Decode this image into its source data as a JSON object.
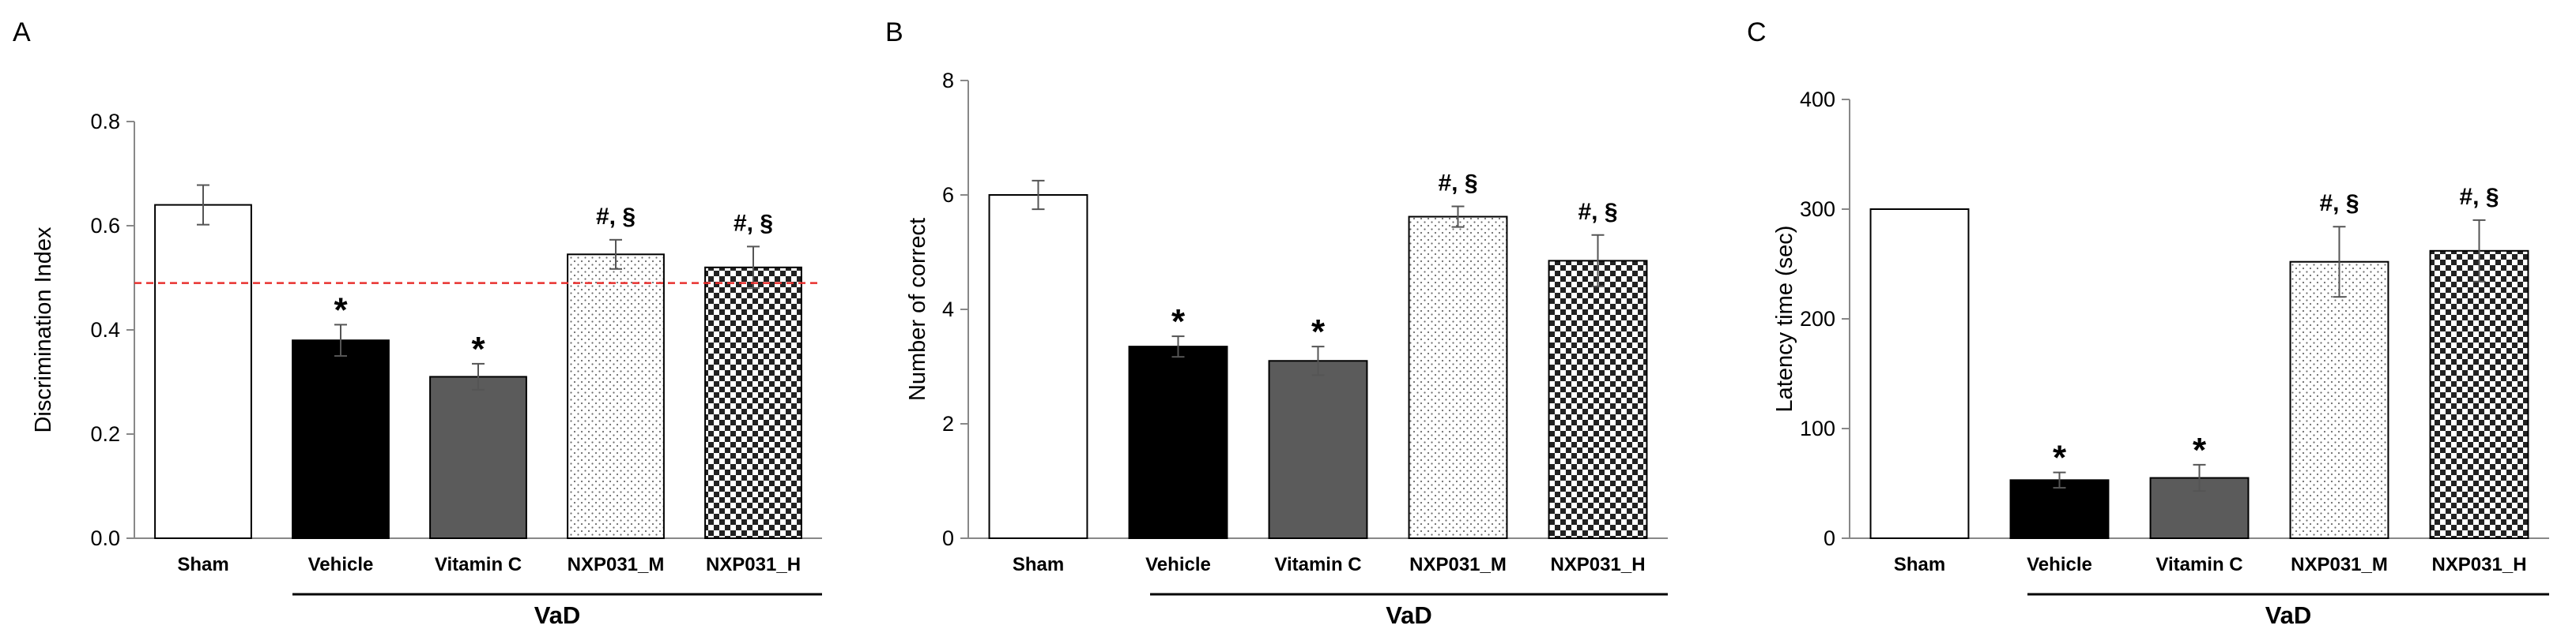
{
  "chart_data": [
    {
      "type": "bar",
      "panel": "A",
      "ylabel": "Discrimination Index",
      "ylim": [
        0,
        0.8
      ],
      "yticks": [
        "0.0",
        "0.2",
        "0.4",
        "0.6",
        "0.8"
      ],
      "categories": [
        "Sham",
        "Vehicle",
        "Vitamin C",
        "NXP031_M",
        "NXP031_H"
      ],
      "values": [
        0.64,
        0.38,
        0.31,
        0.545,
        0.52
      ],
      "errors": [
        0.038,
        0.03,
        0.025,
        0.028,
        0.04
      ],
      "annotations": [
        "",
        "*",
        "*",
        "#, §",
        "#, §"
      ],
      "reference_line": 0.49,
      "group_label": "VaD",
      "grid": false
    },
    {
      "type": "bar",
      "panel": "B",
      "ylabel": "Number  of correct",
      "ylim": [
        0,
        8
      ],
      "yticks": [
        "0",
        "2",
        "4",
        "6",
        "8"
      ],
      "categories": [
        "Sham",
        "Vehicle",
        "Vitamin C",
        "NXP031_M",
        "NXP031_H"
      ],
      "values": [
        6.0,
        3.35,
        3.1,
        5.62,
        4.85
      ],
      "errors": [
        0.25,
        0.18,
        0.25,
        0.18,
        0.45
      ],
      "annotations": [
        "",
        "*",
        "*",
        "#, §",
        "#, §"
      ],
      "group_label": "VaD",
      "grid": false
    },
    {
      "type": "bar",
      "panel": "C",
      "ylabel": "Latency time (sec)",
      "ylim": [
        0,
        400
      ],
      "yticks": [
        "0",
        "100",
        "200",
        "300",
        "400"
      ],
      "categories": [
        "Sham",
        "Vehicle",
        "Vitamin C",
        "NXP031_M",
        "NXP031_H"
      ],
      "values": [
        300,
        53,
        55,
        252,
        262
      ],
      "errors": [
        0,
        7,
        12,
        32,
        28
      ],
      "annotations": [
        "",
        "*",
        "*",
        "#, §",
        "#, §"
      ],
      "group_label": "VaD",
      "grid": false
    }
  ],
  "style": {
    "bar_fills": [
      "white",
      "black",
      "gray",
      "dots",
      "checker"
    ],
    "colors": {
      "bar_edge": "#000000",
      "black_bar": "#000000",
      "gray_bar": "#5b5b5b",
      "reference_line": "#e8312f",
      "axis": "#888888"
    }
  }
}
